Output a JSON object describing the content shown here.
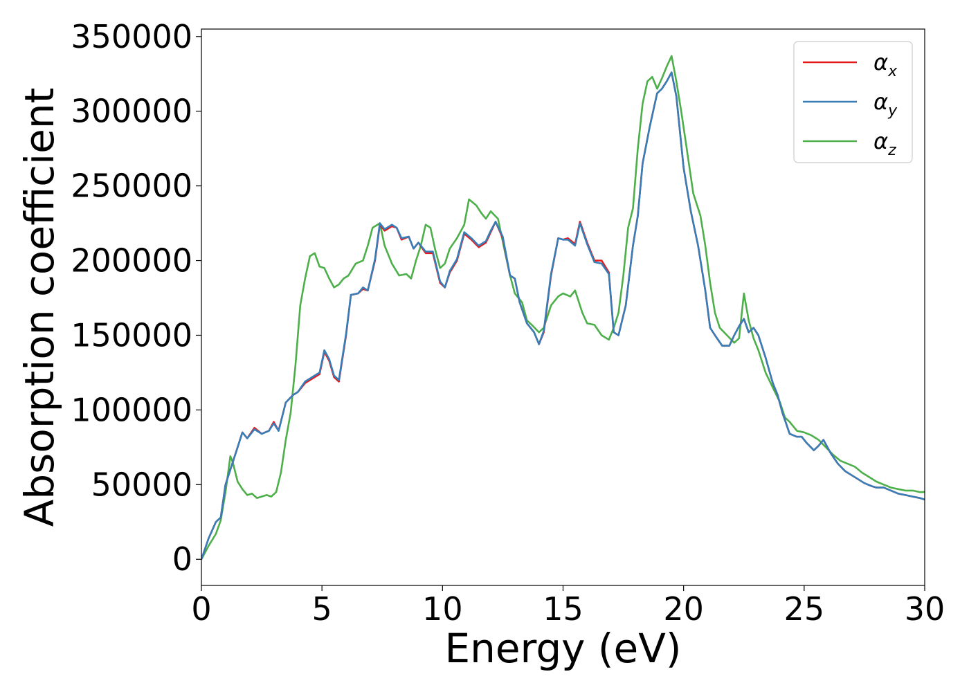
{
  "chart_data": {
    "type": "line",
    "xlabel": "Energy (eV)",
    "ylabel": "Absorption coefficient",
    "xlim": [
      0,
      30
    ],
    "ylim": [
      -17500,
      355000
    ],
    "xticks": [
      0,
      5,
      10,
      15,
      20,
      25,
      30
    ],
    "yticks": [
      0,
      50000,
      100000,
      150000,
      200000,
      250000,
      300000,
      350000
    ],
    "legend_placement": "top-right",
    "grid": false,
    "series": [
      {
        "name": "α_x",
        "label_main": "α",
        "label_sub": "x",
        "color": "#e41a1c",
        "x": [
          0,
          0.3,
          0.6,
          0.8,
          1.0,
          1.2,
          1.5,
          1.7,
          1.9,
          2.2,
          2.5,
          2.8,
          3.0,
          3.2,
          3.5,
          3.8,
          4.0,
          4.3,
          4.6,
          4.9,
          5.1,
          5.3,
          5.5,
          5.7,
          6.0,
          6.2,
          6.5,
          6.7,
          6.9,
          7.2,
          7.4,
          7.6,
          7.9,
          8.1,
          8.3,
          8.6,
          8.8,
          9.0,
          9.3,
          9.6,
          9.9,
          10.1,
          10.3,
          10.6,
          10.9,
          11.2,
          11.5,
          11.8,
          12.0,
          12.2,
          12.5,
          12.8,
          13.0,
          13.2,
          13.5,
          13.8,
          14.0,
          14.2,
          14.5,
          14.8,
          15.0,
          15.2,
          15.5,
          15.7,
          16.0,
          16.3,
          16.6,
          16.9,
          17.1,
          17.3,
          17.6,
          17.9,
          18.1,
          18.3,
          18.6,
          18.9,
          19.1,
          19.3,
          19.5,
          19.7,
          20.0,
          20.3,
          20.6,
          20.9,
          21.1,
          21.3,
          21.6,
          21.9,
          22.1,
          22.3,
          22.5,
          22.7,
          22.9,
          23.1,
          23.4,
          23.7,
          23.9,
          24.1,
          24.4,
          24.7,
          24.9,
          25.1,
          25.4,
          25.6,
          25.8,
          26.1,
          26.4,
          26.7,
          26.9,
          27.2,
          27.5,
          27.8,
          28.0,
          28.3,
          28.6,
          28.9,
          29.2,
          29.5,
          29.8,
          30.0
        ],
        "y": [
          0,
          14000,
          25000,
          28000,
          50000,
          60000,
          75000,
          85000,
          81000,
          88000,
          84000,
          86000,
          92000,
          86000,
          105000,
          110000,
          112000,
          118000,
          121000,
          124000,
          139000,
          133000,
          122000,
          119000,
          150000,
          177000,
          178000,
          181000,
          180000,
          200000,
          224000,
          220000,
          223000,
          222000,
          214000,
          216000,
          208000,
          212000,
          205000,
          205000,
          185000,
          182000,
          192000,
          200000,
          218000,
          214000,
          209000,
          212000,
          219000,
          226000,
          215000,
          190000,
          188000,
          172000,
          158000,
          152000,
          144000,
          152000,
          190000,
          215000,
          214000,
          215000,
          211000,
          226000,
          212000,
          200000,
          200000,
          192000,
          152000,
          150000,
          170000,
          210000,
          230000,
          265000,
          290000,
          312000,
          315000,
          320000,
          326000,
          310000,
          262000,
          233000,
          210000,
          180000,
          155000,
          150000,
          143000,
          143000,
          150000,
          156000,
          161000,
          152000,
          155000,
          150000,
          135000,
          118000,
          110000,
          98000,
          84000,
          82000,
          82000,
          78000,
          73000,
          76000,
          80000,
          71000,
          64000,
          59000,
          57000,
          54000,
          51000,
          49000,
          48000,
          48000,
          46000,
          44000,
          43000,
          42000,
          41000,
          40000
        ]
      },
      {
        "name": "α_y",
        "label_main": "α",
        "label_sub": "y",
        "color": "#377eb8",
        "x": [
          0,
          0.3,
          0.6,
          0.8,
          1.0,
          1.2,
          1.5,
          1.7,
          1.9,
          2.2,
          2.5,
          2.8,
          3.0,
          3.2,
          3.5,
          3.8,
          4.0,
          4.3,
          4.6,
          4.9,
          5.1,
          5.3,
          5.5,
          5.7,
          6.0,
          6.2,
          6.5,
          6.7,
          6.9,
          7.2,
          7.4,
          7.6,
          7.9,
          8.1,
          8.3,
          8.6,
          8.8,
          9.0,
          9.3,
          9.6,
          9.9,
          10.1,
          10.3,
          10.6,
          10.9,
          11.2,
          11.5,
          11.8,
          12.0,
          12.2,
          12.5,
          12.8,
          13.0,
          13.2,
          13.5,
          13.8,
          14.0,
          14.2,
          14.5,
          14.8,
          15.0,
          15.2,
          15.5,
          15.7,
          16.0,
          16.3,
          16.6,
          16.9,
          17.1,
          17.3,
          17.6,
          17.9,
          18.1,
          18.3,
          18.6,
          18.9,
          19.1,
          19.3,
          19.5,
          19.7,
          20.0,
          20.3,
          20.6,
          20.9,
          21.1,
          21.3,
          21.6,
          21.9,
          22.1,
          22.3,
          22.5,
          22.7,
          22.9,
          23.1,
          23.4,
          23.7,
          23.9,
          24.1,
          24.4,
          24.7,
          24.9,
          25.1,
          25.4,
          25.6,
          25.8,
          26.1,
          26.4,
          26.7,
          26.9,
          27.2,
          27.5,
          27.8,
          28.0,
          28.3,
          28.6,
          28.9,
          29.2,
          29.5,
          29.8,
          30.0
        ],
        "y": [
          0,
          14000,
          25000,
          28000,
          50000,
          60000,
          75000,
          85000,
          81000,
          87000,
          84000,
          86000,
          91000,
          86000,
          105000,
          110000,
          112000,
          119000,
          122000,
          125000,
          140000,
          134000,
          123000,
          120000,
          151000,
          177000,
          178000,
          182000,
          180000,
          201000,
          225000,
          221000,
          224000,
          222000,
          215000,
          216000,
          208000,
          212000,
          206000,
          206000,
          186000,
          182000,
          193000,
          201000,
          219000,
          215000,
          210000,
          213000,
          220000,
          226000,
          216000,
          190000,
          188000,
          172000,
          158000,
          152000,
          144000,
          153000,
          191000,
          215000,
          214000,
          214000,
          210000,
          225000,
          211000,
          199000,
          198000,
          191000,
          152000,
          150000,
          170000,
          210000,
          230000,
          265000,
          290000,
          312000,
          315000,
          320000,
          326000,
          310000,
          262000,
          233000,
          210000,
          180000,
          155000,
          150000,
          143000,
          143000,
          150000,
          156000,
          161000,
          152000,
          155000,
          150000,
          135000,
          118000,
          110000,
          98000,
          84000,
          82000,
          82000,
          78000,
          73000,
          76000,
          80000,
          71000,
          64000,
          59000,
          57000,
          54000,
          51000,
          49000,
          48000,
          48000,
          46000,
          44000,
          43000,
          42000,
          41000,
          40000
        ]
      },
      {
        "name": "α_z",
        "label_main": "α",
        "label_sub": "z",
        "color": "#4daf4a",
        "x": [
          0,
          0.3,
          0.6,
          0.8,
          1.0,
          1.2,
          1.3,
          1.5,
          1.7,
          1.9,
          2.1,
          2.3,
          2.5,
          2.7,
          2.9,
          3.1,
          3.3,
          3.5,
          3.7,
          3.9,
          4.1,
          4.3,
          4.5,
          4.7,
          4.9,
          5.1,
          5.3,
          5.5,
          5.7,
          5.9,
          6.1,
          6.4,
          6.7,
          6.9,
          7.1,
          7.4,
          7.6,
          7.9,
          8.2,
          8.5,
          8.7,
          8.9,
          9.1,
          9.3,
          9.5,
          9.7,
          9.9,
          10.1,
          10.3,
          10.6,
          10.9,
          11.1,
          11.4,
          11.6,
          11.8,
          12.0,
          12.3,
          12.6,
          12.8,
          13.0,
          13.3,
          13.5,
          13.7,
          14.0,
          14.2,
          14.5,
          14.8,
          15.0,
          15.3,
          15.5,
          15.8,
          16.0,
          16.3,
          16.6,
          16.9,
          17.1,
          17.3,
          17.5,
          17.7,
          17.9,
          18.1,
          18.3,
          18.5,
          18.7,
          18.9,
          19.1,
          19.3,
          19.5,
          19.7,
          19.9,
          20.1,
          20.4,
          20.7,
          20.9,
          21.1,
          21.3,
          21.5,
          21.8,
          22.1,
          22.3,
          22.5,
          22.7,
          22.9,
          23.1,
          23.4,
          23.7,
          24.0,
          24.2,
          24.4,
          24.7,
          25.0,
          25.3,
          25.6,
          25.9,
          26.2,
          26.5,
          26.8,
          27.1,
          27.4,
          27.7,
          28.0,
          28.3,
          28.6,
          28.9,
          29.2,
          29.5,
          29.8,
          30.0
        ],
        "y": [
          0,
          9000,
          17000,
          26000,
          45000,
          69000,
          65000,
          52000,
          47000,
          43000,
          44000,
          41000,
          42000,
          43000,
          42000,
          45000,
          58000,
          80000,
          98000,
          130000,
          170000,
          188000,
          203000,
          205000,
          196000,
          195000,
          188000,
          182000,
          184000,
          188000,
          190000,
          198000,
          200000,
          210000,
          222000,
          225000,
          210000,
          198000,
          190000,
          191000,
          188000,
          200000,
          210000,
          224000,
          222000,
          207000,
          195000,
          198000,
          208000,
          215000,
          224000,
          241000,
          237000,
          232000,
          228000,
          233000,
          228000,
          205000,
          190000,
          178000,
          172000,
          160000,
          157000,
          152000,
          155000,
          170000,
          176000,
          178000,
          176000,
          180000,
          165000,
          158000,
          157000,
          150000,
          147000,
          155000,
          165000,
          190000,
          222000,
          235000,
          275000,
          305000,
          320000,
          323000,
          315000,
          322000,
          330000,
          337000,
          320000,
          300000,
          278000,
          245000,
          230000,
          210000,
          185000,
          165000,
          155000,
          150000,
          145000,
          148000,
          178000,
          160000,
          148000,
          140000,
          125000,
          115000,
          105000,
          95000,
          92000,
          86000,
          85000,
          83000,
          80000,
          75000,
          70000,
          66000,
          64000,
          62000,
          58000,
          55000,
          52000,
          50000,
          48000,
          47000,
          46000,
          46000,
          45000,
          45000
        ]
      }
    ]
  }
}
